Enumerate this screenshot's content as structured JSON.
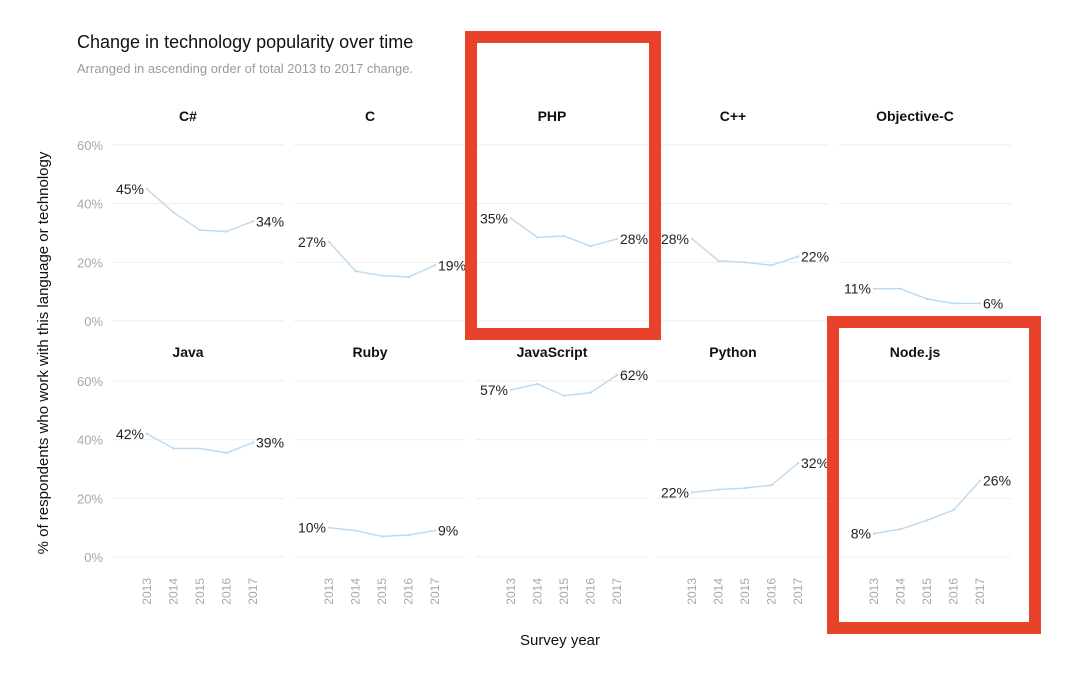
{
  "chart_data": {
    "type": "line",
    "title": "Change in technology popularity over time",
    "subtitle": "Arranged in ascending order of total 2013 to 2017 change.",
    "xlabel": "Survey year",
    "ylabel": "% of respondents who work with this language or technology",
    "x": [
      "2013",
      "2014",
      "2015",
      "2016",
      "2017"
    ],
    "ylim": [
      0,
      60
    ],
    "yticks": [
      "0%",
      "20%",
      "40%",
      "60%"
    ],
    "grid": true,
    "line_color": "#bcd9ef",
    "highlight_color": "#e8422a",
    "highlighted_panels": [
      "PHP",
      "Node.js"
    ],
    "panels": [
      {
        "name": "C#",
        "values": [
          45,
          37,
          31,
          30.5,
          34
        ],
        "start_label": "45%",
        "end_label": "34%"
      },
      {
        "name": "C",
        "values": [
          27,
          17,
          15.5,
          15,
          19
        ],
        "start_label": "27%",
        "end_label": "19%"
      },
      {
        "name": "PHP",
        "values": [
          35,
          28.5,
          29,
          25.5,
          28
        ],
        "start_label": "35%",
        "end_label": "28%"
      },
      {
        "name": "C++",
        "values": [
          28,
          20.5,
          20,
          19,
          22
        ],
        "start_label": "28%",
        "end_label": "22%"
      },
      {
        "name": "Objective-C",
        "values": [
          11,
          11,
          7.5,
          6,
          6
        ],
        "start_label": "11%",
        "end_label": "6%"
      },
      {
        "name": "Java",
        "values": [
          42,
          37,
          37,
          35.5,
          39
        ],
        "start_label": "42%",
        "end_label": "39%"
      },
      {
        "name": "Ruby",
        "values": [
          10,
          9,
          7,
          7.5,
          9
        ],
        "start_label": "10%",
        "end_label": "9%"
      },
      {
        "name": "JavaScript",
        "values": [
          57,
          59,
          55,
          56,
          62
        ],
        "start_label": "57%",
        "end_label": "62%"
      },
      {
        "name": "Python",
        "values": [
          22,
          23,
          23.5,
          24.5,
          32
        ],
        "start_label": "22%",
        "end_label": "32%"
      },
      {
        "name": "Node.js",
        "values": [
          8,
          9.5,
          12.5,
          16,
          26
        ],
        "start_label": "8%",
        "end_label": "26%"
      }
    ]
  }
}
